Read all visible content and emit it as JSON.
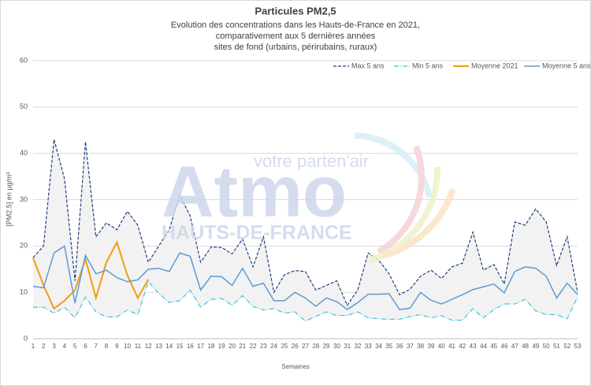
{
  "chart_data": {
    "type": "line",
    "title": "Particules PM2,5",
    "subtitle": [
      "Evolution des concentrations dans les Hauts-de-France en 2021,",
      "comparativement aux 5 dernières années",
      "sites de fond (urbains, périrubains, ruraux)"
    ],
    "watermark": [
      "votre parten'air",
      "Atmo",
      "HAUTS-DE-FRANCE"
    ],
    "x_label": "Semaines",
    "y_label": "[PM2.5] en µg/m³",
    "categories": [
      "1",
      "2",
      "3",
      "4",
      "5",
      "6",
      "7",
      "8",
      "9",
      "10",
      "11",
      "12",
      "13",
      "14",
      "15",
      "16",
      "17",
      "18",
      "19",
      "20",
      "21",
      "22",
      "23",
      "24",
      "25",
      "26",
      "27",
      "28",
      "29",
      "30",
      "31",
      "32",
      "33",
      "34",
      "35",
      "36",
      "37",
      "38",
      "39",
      "40",
      "41",
      "42",
      "43",
      "44",
      "45",
      "46",
      "47",
      "48",
      "49",
      "50",
      "51",
      "52",
      "53"
    ],
    "ylim": [
      0,
      60
    ],
    "yticks": [
      0,
      10,
      20,
      30,
      40,
      50,
      60
    ],
    "grid": true,
    "legend": "top-right",
    "range_fill": "#f2f2f2",
    "series": [
      {
        "name": "Max 5 ans",
        "color": "#203f7e",
        "dash": "4 2",
        "values": [
          17.5,
          20,
          43,
          34.5,
          12.5,
          42.5,
          22,
          25,
          23.5,
          27.5,
          24.5,
          16.5,
          20,
          23.5,
          31,
          26.5,
          16.5,
          19.8,
          19.7,
          18.3,
          21.5,
          15.5,
          22,
          10,
          13.8,
          14.7,
          14.5,
          10.5,
          11.5,
          12.5,
          7.2,
          10.5,
          18.5,
          17,
          14,
          9.5,
          10.7,
          13.5,
          14.8,
          13,
          15.5,
          16.3,
          23,
          14.8,
          16,
          11.8,
          25.2,
          24.5,
          28,
          25.2,
          15.8,
          22,
          10
        ]
      },
      {
        "name": "Min 5 ans",
        "color": "#3cc4d8",
        "dash": "6 2 1 2",
        "values": [
          6.8,
          6.8,
          5.5,
          6.8,
          4.5,
          9,
          5.8,
          4.7,
          4.7,
          6.2,
          5.2,
          12.3,
          9.8,
          7.8,
          8.2,
          10.5,
          6.8,
          8.5,
          8.7,
          7.2,
          9.3,
          7,
          6.2,
          6.5,
          5.5,
          5.8,
          3.8,
          4.8,
          5.8,
          5,
          5,
          5.8,
          4.5,
          4.3,
          4.2,
          4.2,
          4.8,
          5.2,
          4.5,
          5,
          4,
          4,
          6.5,
          4.5,
          6.3,
          7.5,
          7.5,
          8.5,
          6,
          5.2,
          5.2,
          4.3,
          9
        ]
      },
      {
        "name": "Moyenne 2021",
        "color": "#f39c12",
        "width": 2,
        "values": [
          17.5,
          11.5,
          6.5,
          8.2,
          10.5,
          17.2,
          8.8,
          16.5,
          20.8,
          13.7,
          8.8,
          12.8,
          null,
          null,
          null,
          null,
          null,
          null,
          null,
          null,
          null,
          null,
          null,
          null,
          null,
          null,
          null,
          null,
          null,
          null,
          null,
          null,
          null,
          null,
          null,
          null,
          null,
          null,
          null,
          null,
          null,
          null,
          null,
          null,
          null,
          null,
          null,
          null,
          null,
          null,
          null,
          null,
          null
        ]
      },
      {
        "name": "Moyenne 5 ans",
        "color": "#5b9bd5",
        "width": 1.5,
        "values": [
          11.3,
          11,
          18.5,
          20,
          7.7,
          18,
          14,
          14.8,
          13.2,
          12.3,
          12.7,
          15,
          15.2,
          14.5,
          18.5,
          17.8,
          10.5,
          13.5,
          13.4,
          11.5,
          15.2,
          11.3,
          12,
          8.2,
          8.2,
          10,
          8.8,
          7,
          8.8,
          8,
          6.3,
          7.8,
          9.6,
          9.6,
          9.7,
          6.3,
          6.6,
          10,
          8.3,
          7.5,
          8.5,
          9.5,
          10.6,
          11.2,
          11.8,
          9.9,
          14.5,
          15.5,
          15.2,
          13.5,
          8.8,
          12,
          9.5
        ]
      }
    ]
  }
}
